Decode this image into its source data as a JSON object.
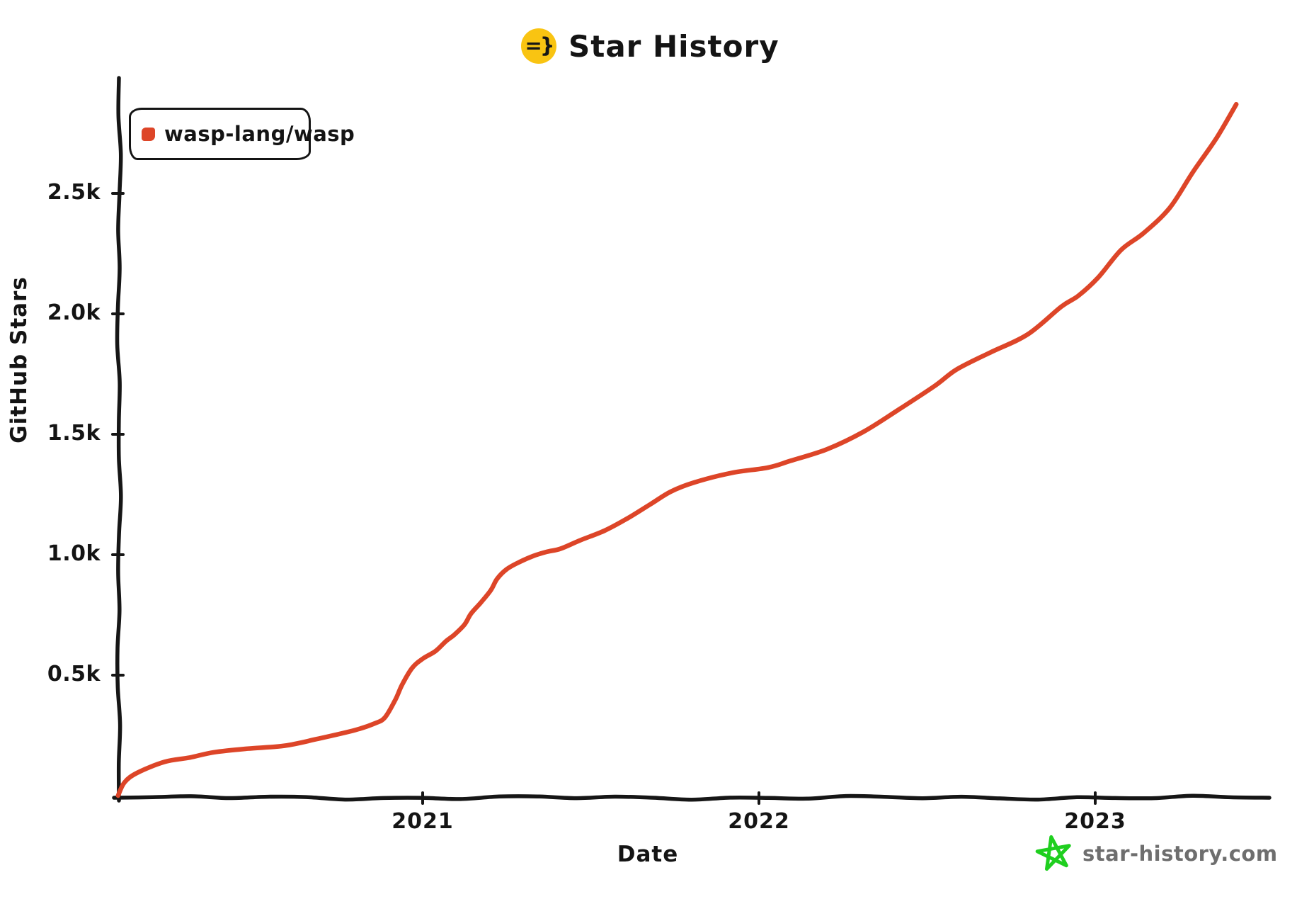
{
  "header": {
    "badge_text": "=}",
    "title": "Star History"
  },
  "axes": {
    "y_label": "GitHub Stars",
    "x_label": "Date"
  },
  "watermark": {
    "text": "star-history.com"
  },
  "colors": {
    "series_red": "#dd4528",
    "badge_yellow": "#f9c412",
    "axis_black": "#161616",
    "watermark_green": "#1fcf1f",
    "watermark_gray": "#6e6e6e"
  },
  "chart_data": {
    "type": "line",
    "title": "Star History",
    "xlabel": "Date",
    "ylabel": "GitHub Stars",
    "x_ticks": [
      "2021",
      "2022",
      "2023"
    ],
    "y_ticks": [
      "0.5k",
      "1.0k",
      "1.5k",
      "2.0k",
      "2.5k"
    ],
    "x_range": [
      "2020-02-05",
      "2023-06-02"
    ],
    "ylim": [
      0,
      2900
    ],
    "grid": false,
    "legend_position": "top-left",
    "series": [
      {
        "name": "wasp-lang/wasp",
        "color": "#dd4528",
        "points": [
          [
            "2020-02-05",
            0
          ],
          [
            "2020-02-12",
            55
          ],
          [
            "2020-02-26",
            95
          ],
          [
            "2020-03-25",
            140
          ],
          [
            "2020-04-22",
            158
          ],
          [
            "2020-05-18",
            180
          ],
          [
            "2020-06-24",
            195
          ],
          [
            "2020-08-03",
            207
          ],
          [
            "2020-09-08",
            235
          ],
          [
            "2020-10-19",
            272
          ],
          [
            "2020-11-10",
            300
          ],
          [
            "2020-11-21",
            325
          ],
          [
            "2020-12-02",
            400
          ],
          [
            "2020-12-09",
            460
          ],
          [
            "2020-12-20",
            530
          ],
          [
            "2021-01-01",
            568
          ],
          [
            "2021-01-15",
            600
          ],
          [
            "2021-01-26",
            640
          ],
          [
            "2021-02-05",
            668
          ],
          [
            "2021-02-16",
            710
          ],
          [
            "2021-02-23",
            755
          ],
          [
            "2021-03-03",
            800
          ],
          [
            "2021-03-14",
            852
          ],
          [
            "2021-03-21",
            900
          ],
          [
            "2021-04-01",
            940
          ],
          [
            "2021-04-15",
            970
          ],
          [
            "2021-04-30",
            995
          ],
          [
            "2021-05-14",
            1012
          ],
          [
            "2021-05-29",
            1025
          ],
          [
            "2021-06-20",
            1060
          ],
          [
            "2021-07-16",
            1100
          ],
          [
            "2021-08-10",
            1150
          ],
          [
            "2021-09-05",
            1210
          ],
          [
            "2021-09-27",
            1262
          ],
          [
            "2021-10-22",
            1300
          ],
          [
            "2021-12-02",
            1340
          ],
          [
            "2022-01-11",
            1362
          ],
          [
            "2022-02-05",
            1390
          ],
          [
            "2022-03-14",
            1438
          ],
          [
            "2022-04-23",
            1510
          ],
          [
            "2022-05-30",
            1600
          ],
          [
            "2022-07-09",
            1700
          ],
          [
            "2022-08-03",
            1770
          ],
          [
            "2022-09-09",
            1840
          ],
          [
            "2022-10-19",
            1915
          ],
          [
            "2022-11-25",
            2030
          ],
          [
            "2022-12-13",
            2075
          ],
          [
            "2023-01-04",
            2150
          ],
          [
            "2023-01-29",
            2265
          ],
          [
            "2023-02-23",
            2335
          ],
          [
            "2023-03-21",
            2440
          ],
          [
            "2023-04-16",
            2590
          ],
          [
            "2023-05-11",
            2730
          ],
          [
            "2023-06-02",
            2870
          ]
        ]
      }
    ]
  }
}
